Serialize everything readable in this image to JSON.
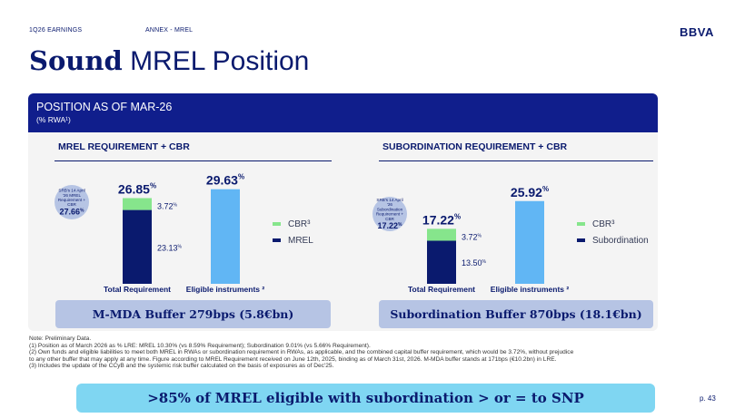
{
  "header": {
    "left": "1Q26 EARNINGS",
    "section": "ANNEX - MREL",
    "logo": "BBVA"
  },
  "title": {
    "bold": "Sound",
    "rest": " MREL Position"
  },
  "panel": {
    "title": "POSITION AS OF MAR-26",
    "subtitle": "(% RWA¹)"
  },
  "left_section": {
    "title": "MREL REQUIREMENT + CBR",
    "badge": {
      "lines": [
        "SRB's 14 April",
        "'26 MREL",
        "Requirement +",
        "CBR"
      ],
      "value": "27.66%"
    },
    "legend": [
      "CBR³",
      "MREL"
    ],
    "buffer": "M-MDA Buffer 279bps (5.8€bn)"
  },
  "right_section": {
    "title": "SUBORDINATION REQUIREMENT + CBR",
    "badge": {
      "lines": [
        "SRB's 14 April",
        "'26",
        "Subordination",
        "Requirement +",
        "CBR"
      ],
      "value": "17.22%"
    },
    "legend": [
      "CBR³",
      "Subordination"
    ],
    "buffer": "Subordination Buffer 870bps (18.1€bn)"
  },
  "colors": {
    "navy": "#0a1a6e",
    "cbr": "#86e58c",
    "eligible": "#61b6f4",
    "panel_head": "#101e8c",
    "banner": "#7fd6f2"
  },
  "chart_data": [
    {
      "type": "bar",
      "categories": [
        "Total Requirement",
        "Eligible instruments ²"
      ],
      "series": [
        {
          "name": "MREL",
          "values": [
            23.13,
            null
          ]
        },
        {
          "name": "CBR³",
          "values": [
            3.72,
            null
          ]
        },
        {
          "values": [
            null,
            29.63
          ]
        }
      ],
      "totals": [
        26.85,
        29.63
      ],
      "labels": {
        "total_req": "26.85%",
        "cbr": "3.72%",
        "base": "23.13%",
        "eligible": "29.63%"
      },
      "ylim": [
        0,
        30
      ]
    },
    {
      "type": "bar",
      "categories": [
        "Total Requirement",
        "Eligible instruments ²"
      ],
      "series": [
        {
          "name": "Subordination",
          "values": [
            13.5,
            null
          ]
        },
        {
          "name": "CBR³",
          "values": [
            3.72,
            null
          ]
        },
        {
          "values": [
            null,
            25.92
          ]
        }
      ],
      "totals": [
        17.22,
        25.92
      ],
      "labels": {
        "total_req": "17.22%",
        "cbr": "3.72%",
        "base": "13.50%",
        "eligible": "25.92%"
      },
      "ylim": [
        0,
        30
      ]
    }
  ],
  "notes": [
    "Note: Preliminary Data.",
    "(1) Position as of March 2026 as % LRE: MREL 10.30% (vs 8.59% Requirement); Subordination 9.01% (vs 5.66% Requirement).",
    "(2) Own funds and eligible liabilities to meet both MREL in RWAs or subordination requirement in RWAs, as applicable, and the combined capital buffer requirement, which would be 3.72%, without prejudice",
    "to any other buffer that may apply at any time. Figure according to MREL Requirement received on June 12th, 2025, binding as of March 31st, 2026. M-MDA buffer stands at 171bps (€10.2bn) in LRE.",
    "(3) Includes the update of the CCyB and the systemic risk buffer calculated on the basis of exposures as of Dec'25."
  ],
  "banner": ">85% of MREL eligible with subordination > or = to SNP",
  "page": "p. 43"
}
